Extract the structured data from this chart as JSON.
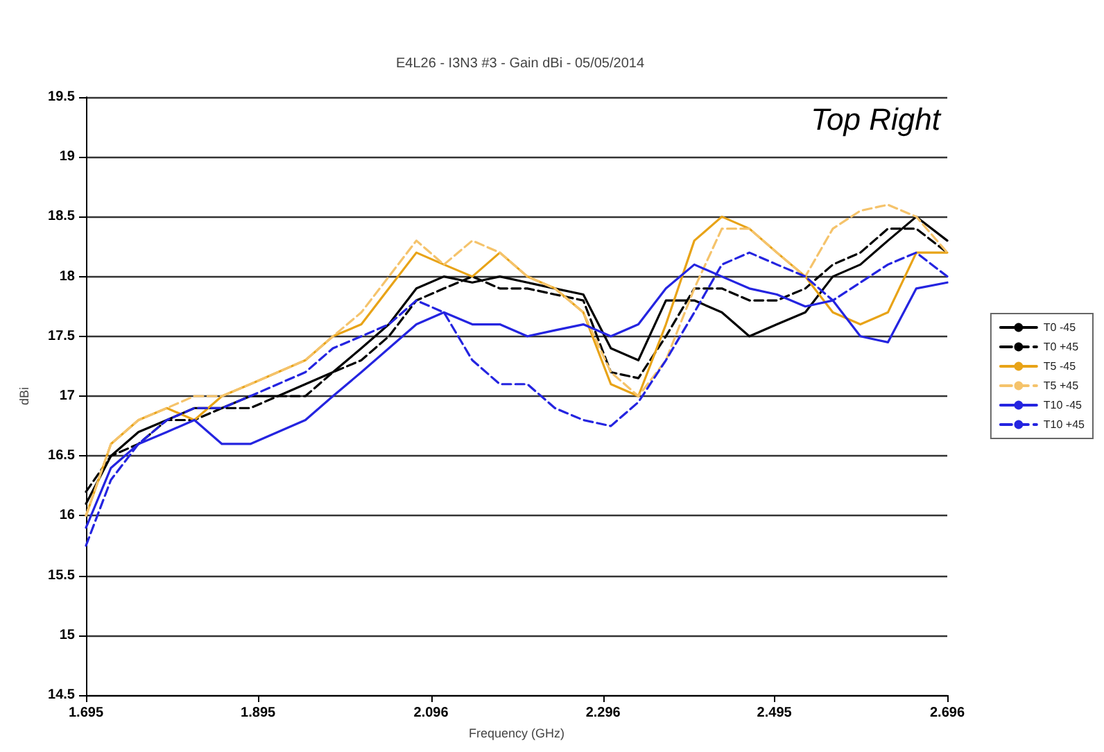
{
  "chart_data": {
    "type": "line",
    "title": "E4L26 - I3N3 #3 - Gain dBi - 05/05/2014",
    "xlabel": "Frequency (GHz)",
    "ylabel": "dBi",
    "annotations": [
      "Top Right"
    ],
    "x": [
      1.695,
      1.724,
      1.756,
      1.789,
      1.821,
      1.853,
      1.886,
      1.918,
      1.95,
      1.982,
      2.015,
      2.047,
      2.079,
      2.111,
      2.144,
      2.176,
      2.208,
      2.24,
      2.273,
      2.305,
      2.337,
      2.369,
      2.402,
      2.434,
      2.466,
      2.498,
      2.531,
      2.563,
      2.595,
      2.627,
      2.66,
      2.696
    ],
    "series": [
      {
        "name": "T0 -45",
        "color": "#000000",
        "line_style": "solid",
        "values": [
          16.1,
          16.5,
          16.7,
          16.8,
          16.9,
          16.9,
          17.0,
          17.0,
          17.1,
          17.2,
          17.4,
          17.6,
          17.9,
          18.0,
          17.95,
          18.0,
          17.95,
          17.9,
          17.85,
          17.4,
          17.3,
          17.8,
          17.8,
          17.7,
          17.5,
          17.6,
          17.7,
          18.0,
          18.1,
          18.3,
          18.5,
          18.3
        ]
      },
      {
        "name": "T0 +45",
        "color": "#000000",
        "line_style": "dashed",
        "values": [
          16.2,
          16.5,
          16.6,
          16.8,
          16.8,
          16.9,
          16.9,
          17.0,
          17.0,
          17.2,
          17.3,
          17.5,
          17.8,
          17.9,
          18.0,
          17.9,
          17.9,
          17.85,
          17.8,
          17.2,
          17.15,
          17.5,
          17.9,
          17.9,
          17.8,
          17.8,
          17.9,
          18.1,
          18.2,
          18.4,
          18.4,
          18.2
        ]
      },
      {
        "name": "T5 -45",
        "color": "#e8a317",
        "line_style": "solid",
        "values": [
          16.0,
          16.6,
          16.8,
          16.9,
          16.8,
          17.0,
          17.1,
          17.2,
          17.3,
          17.5,
          17.6,
          17.9,
          18.2,
          18.1,
          18.0,
          18.2,
          18.0,
          17.9,
          17.7,
          17.1,
          17.0,
          17.6,
          18.3,
          18.5,
          18.4,
          18.2,
          18.0,
          17.7,
          17.6,
          17.7,
          18.2,
          18.2
        ]
      },
      {
        "name": "T5 +45",
        "color": "#f5c36b",
        "line_style": "dashed",
        "values": [
          16.0,
          16.6,
          16.8,
          16.9,
          17.0,
          17.0,
          17.1,
          17.2,
          17.3,
          17.5,
          17.7,
          18.0,
          18.3,
          18.1,
          18.3,
          18.2,
          18.0,
          17.9,
          17.7,
          17.2,
          17.0,
          17.3,
          17.9,
          18.4,
          18.4,
          18.2,
          18.0,
          18.4,
          18.55,
          18.6,
          18.5,
          18.2
        ]
      },
      {
        "name": "T10 -45",
        "color": "#2424e0",
        "line_style": "solid",
        "values": [
          15.9,
          16.4,
          16.6,
          16.7,
          16.8,
          16.6,
          16.6,
          16.7,
          16.8,
          17.0,
          17.2,
          17.4,
          17.6,
          17.7,
          17.6,
          17.6,
          17.5,
          17.55,
          17.6,
          17.5,
          17.6,
          17.9,
          18.1,
          18.0,
          17.9,
          17.85,
          17.75,
          17.8,
          17.5,
          17.45,
          17.9,
          17.95
        ]
      },
      {
        "name": "T10 +45",
        "color": "#2424e0",
        "line_style": "dashed",
        "values": [
          15.75,
          16.3,
          16.6,
          16.8,
          16.9,
          16.9,
          17.0,
          17.1,
          17.2,
          17.4,
          17.5,
          17.6,
          17.8,
          17.7,
          17.3,
          17.1,
          17.1,
          16.9,
          16.8,
          16.75,
          16.95,
          17.3,
          17.7,
          18.1,
          18.2,
          18.1,
          18.0,
          17.8,
          17.95,
          18.1,
          18.2,
          18.0
        ]
      }
    ],
    "xlim": [
      1.695,
      2.696
    ],
    "xticks": [
      1.695,
      1.895,
      2.096,
      2.296,
      2.495,
      2.696
    ],
    "ylim": [
      14.5,
      19.5
    ],
    "yticks": [
      14.5,
      15,
      15.5,
      16,
      16.5,
      17,
      17.5,
      18,
      18.5,
      19,
      19.5
    ],
    "grid": "y",
    "legend": "right",
    "marker": "none"
  }
}
